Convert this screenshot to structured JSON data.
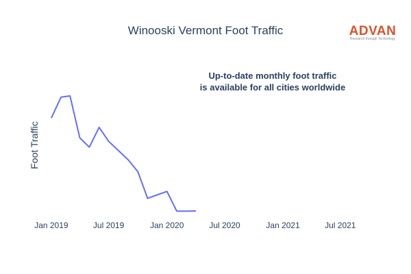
{
  "brand": {
    "name": "ADVAN",
    "tagline": "Research through Technology",
    "color": "#d9532c"
  },
  "annotation": {
    "line1": "Up-to-date monthly foot traffic",
    "line2": "is available for all cities worldwide"
  },
  "chart_data": {
    "type": "line",
    "title": "Winooski Vermont Foot Traffic",
    "xlabel": "",
    "ylabel": "Foot Traffic",
    "x_axis_type": "date",
    "x_range": [
      "2018-12-15",
      "2021-09-15"
    ],
    "x_ticks": [
      {
        "date": "2019-01-01",
        "label": "Jan 2019"
      },
      {
        "date": "2019-07-01",
        "label": "Jul 2019"
      },
      {
        "date": "2020-01-01",
        "label": "Jan 2020"
      },
      {
        "date": "2020-07-01",
        "label": "Jul 2020"
      },
      {
        "date": "2021-01-01",
        "label": "Jan 2021"
      },
      {
        "date": "2021-07-01",
        "label": "Jul 2021"
      }
    ],
    "y_range": [
      0,
      100
    ],
    "y_ticks_shown": false,
    "grid": false,
    "legend": "none",
    "series": [
      {
        "color": "#636efa",
        "x": [
          "2019-01-01",
          "2019-02-01",
          "2019-03-01",
          "2019-04-01",
          "2019-05-01",
          "2019-06-01",
          "2019-07-01",
          "2019-08-01",
          "2019-09-01",
          "2019-10-01",
          "2019-11-01",
          "2019-12-01",
          "2020-01-01",
          "2020-02-01",
          "2020-03-01",
          "2020-04-01"
        ],
        "values": [
          81,
          99,
          100,
          64,
          56,
          73,
          61,
          53,
          45,
          35,
          12,
          15,
          18,
          1,
          1,
          1.2
        ]
      }
    ]
  }
}
